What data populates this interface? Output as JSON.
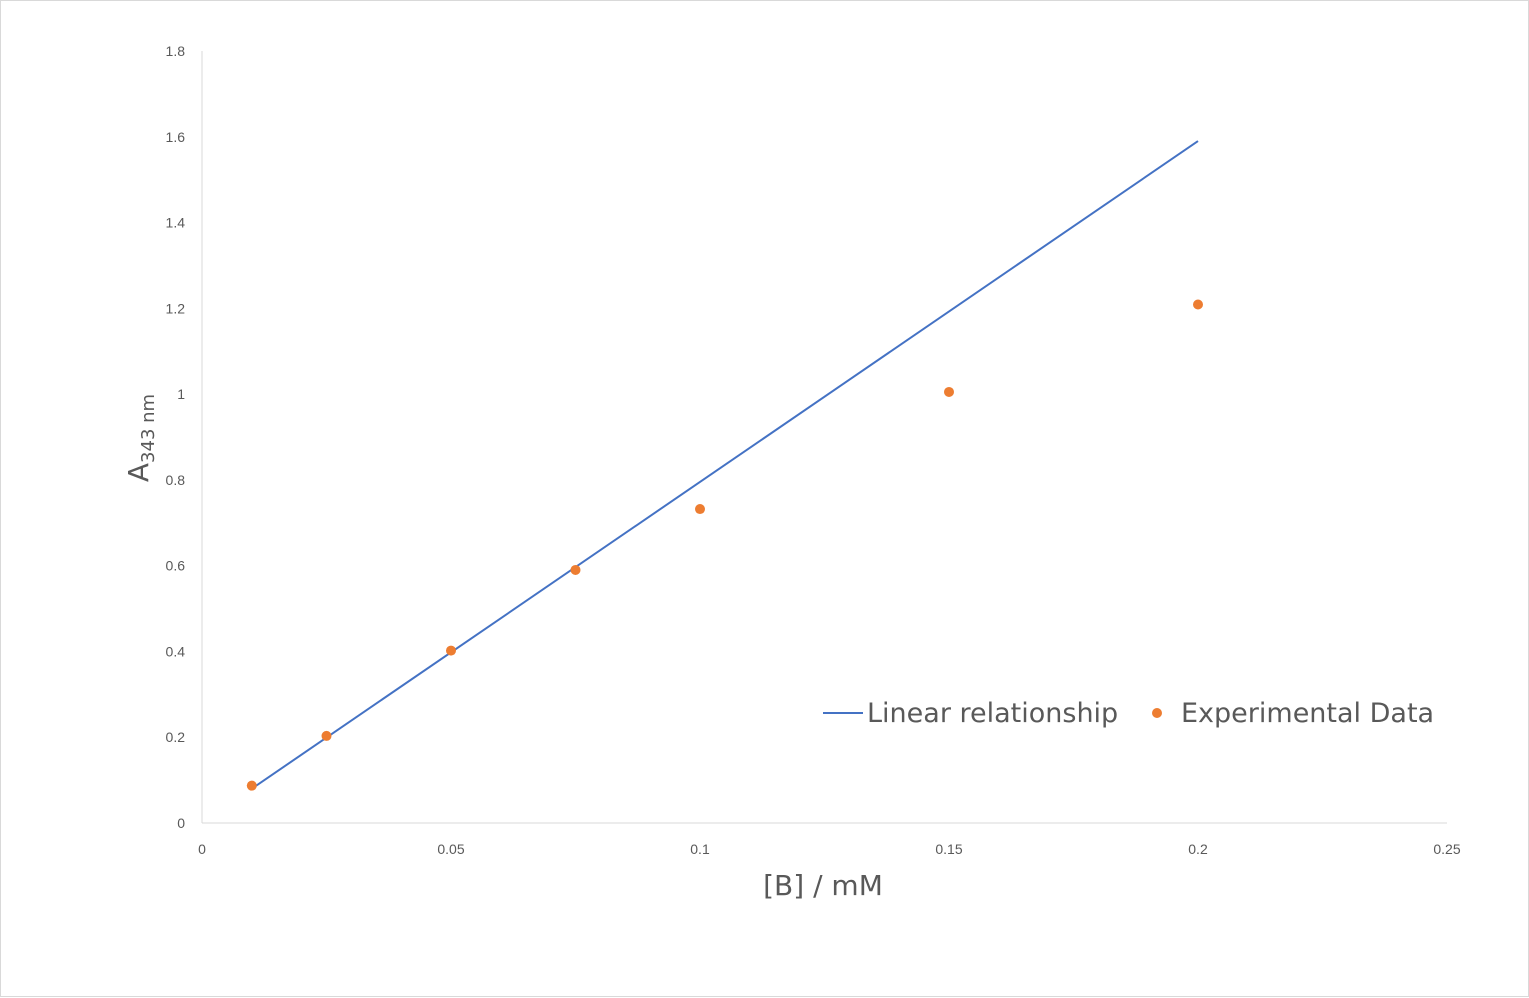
{
  "chart_data": {
    "type": "scatter",
    "xlabel": "[B] / mM",
    "ylabel": {
      "main": "A",
      "subscript": "343 nm"
    },
    "xlim": [
      0,
      0.25
    ],
    "ylim": [
      0,
      1.8
    ],
    "x_ticks": [
      "0",
      "0.05",
      "0.1",
      "0.15",
      "0.2",
      "0.25"
    ],
    "y_ticks": [
      "0",
      "0.2",
      "0.4",
      "0.6",
      "0.8",
      "1",
      "1.2",
      "1.4",
      "1.6",
      "1.8"
    ],
    "grid": false,
    "legend_position": "bottom-right inside",
    "series": [
      {
        "name": "Linear relationship",
        "kind": "line",
        "color": "#4472c4",
        "x": [
          0.01,
          0.2
        ],
        "y": [
          0.08,
          1.59
        ]
      },
      {
        "name": "Experimental Data",
        "kind": "points",
        "color": "#ed7d31",
        "x": [
          0.01,
          0.025,
          0.05,
          0.075,
          0.1,
          0.15,
          0.2
        ],
        "y": [
          0.087,
          0.203,
          0.402,
          0.59,
          0.732,
          1.005,
          1.209
        ]
      }
    ]
  }
}
